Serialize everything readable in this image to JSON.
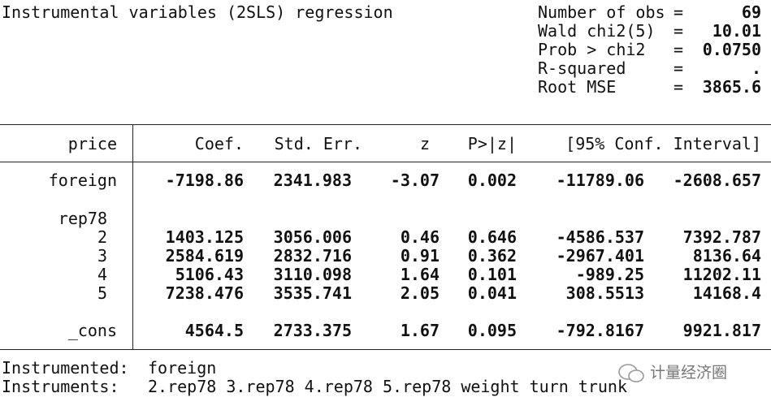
{
  "header": {
    "title": "Instrumental variables (2SLS) regression",
    "stats": [
      {
        "label": "Number of obs",
        "eq": "=",
        "value": "69"
      },
      {
        "label": "Wald chi2(5)",
        "eq": "=",
        "value": "10.01"
      },
      {
        "label": "Prob > chi2",
        "eq": "=",
        "value": "0.0750"
      },
      {
        "label": "R-squared",
        "eq": "=",
        "value": "."
      },
      {
        "label": "Root MSE",
        "eq": "=",
        "value": "3865.6"
      }
    ]
  },
  "table": {
    "depvar": "price",
    "columns": [
      "Coef.",
      "Std. Err.",
      "z",
      "P>|z|",
      "[95% Conf. Interval]"
    ],
    "rows": [
      {
        "label": "foreign",
        "values": [
          "-7198.86",
          "2341.983",
          "-3.07",
          "0.002",
          "-11789.06",
          "-2608.657"
        ]
      },
      {
        "label": "rep78",
        "values": []
      },
      {
        "label": "2",
        "values": [
          "1403.125",
          "3056.006",
          "0.46",
          "0.646",
          "-4586.537",
          "7392.787"
        ]
      },
      {
        "label": "3",
        "values": [
          "2584.619",
          "2832.716",
          "0.91",
          "0.362",
          "-2967.401",
          "8136.64"
        ]
      },
      {
        "label": "4",
        "values": [
          "5106.43",
          "3110.098",
          "1.64",
          "0.101",
          "-989.25",
          "11202.11"
        ]
      },
      {
        "label": "5",
        "values": [
          "7238.476",
          "3535.741",
          "2.05",
          "0.041",
          "308.5513",
          "14168.4"
        ]
      },
      {
        "label": "_cons",
        "values": [
          "4564.5",
          "2733.375",
          "1.67",
          "0.095",
          "-792.8167",
          "9921.817"
        ]
      }
    ]
  },
  "footer": [
    {
      "label": "Instrumented:",
      "value": "foreign"
    },
    {
      "label": "Instruments:",
      "value": "2.rep78 3.rep78 4.rep78 5.rep78 weight turn trunk"
    }
  ],
  "watermark": "计量经济圈"
}
